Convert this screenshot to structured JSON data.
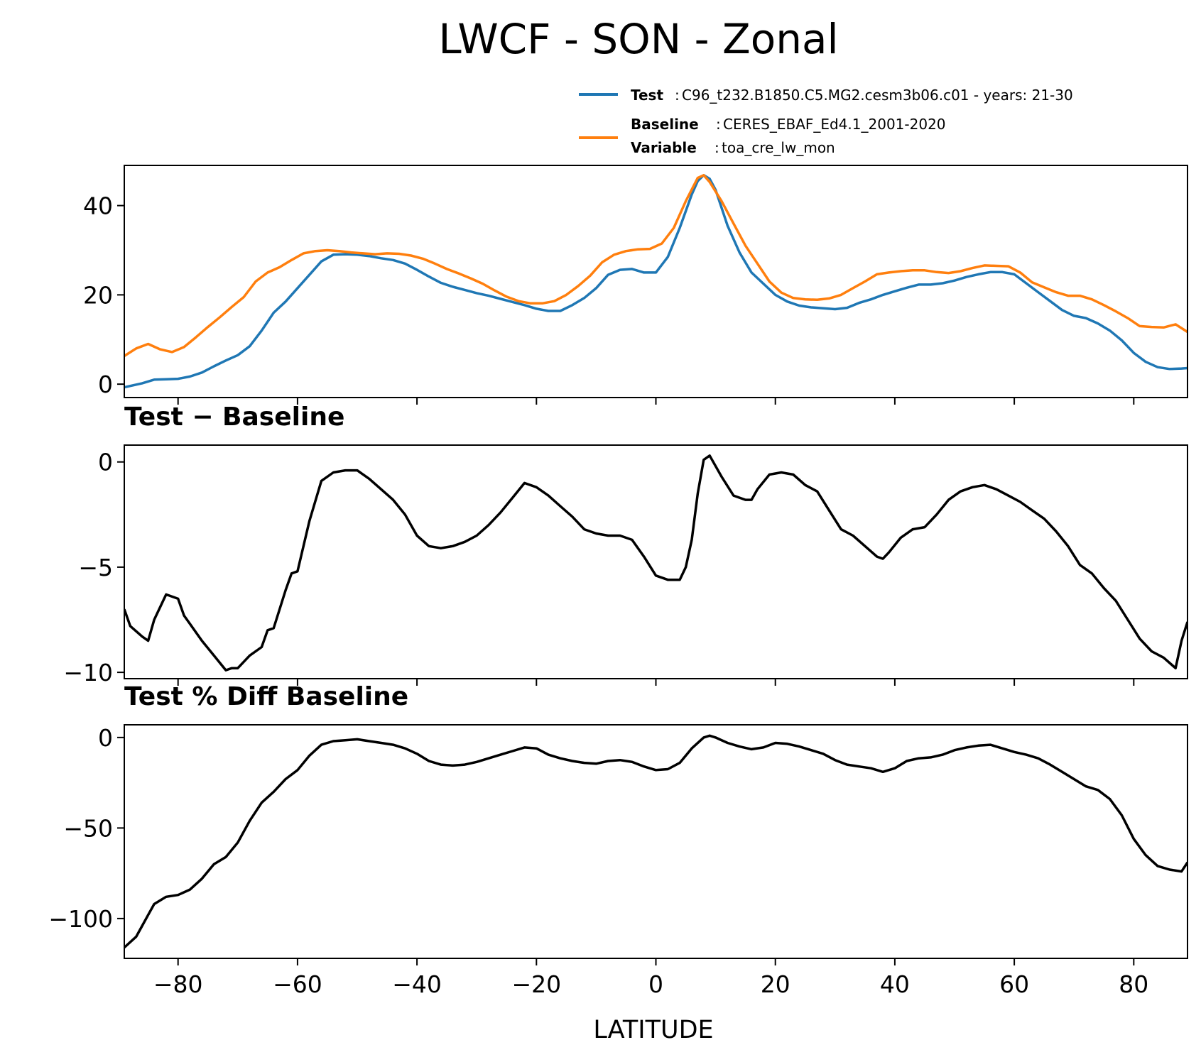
{
  "figure": {
    "title": "LWCF - SON - Zonal",
    "xlabel": "LATITUDE",
    "legend": {
      "test_key": "Test",
      "test_value": "C96_t232.B1850.C5.MG2.cesm3b06.c01 - years: 21-30",
      "baseline_key": "Baseline",
      "baseline_value": "CERES_EBAF_Ed4.1_2001-2020",
      "variable_key": "Variable",
      "variable_value": "toa_cre_lw_mon"
    },
    "panel2_title": "Test − Baseline",
    "panel3_title": "Test % Diff Baseline"
  },
  "colors": {
    "test": "#1f77b4",
    "baseline": "#ff7f0e",
    "diff": "#000000"
  },
  "chart_data": [
    {
      "type": "line",
      "title": "LWCF - SON - Zonal",
      "xlabel": "",
      "ylabel": "",
      "xlim": [
        -89,
        89
      ],
      "ylim": [
        -3,
        49
      ],
      "xticks": [
        -80,
        -60,
        -40,
        -20,
        0,
        20,
        40,
        60,
        80
      ],
      "yticks": [
        0,
        20,
        40
      ],
      "series": [
        {
          "name": "Test",
          "color": "#1f77b4",
          "x": [
            -89,
            -86,
            -84,
            -82,
            -80,
            -78,
            -76,
            -74,
            -72,
            -70,
            -68,
            -66,
            -64,
            -62,
            -60,
            -58,
            -56,
            -54,
            -52,
            -50,
            -48,
            -46,
            -44,
            -42,
            -40,
            -38,
            -36,
            -34,
            -32,
            -30,
            -28,
            -26,
            -24,
            -22,
            -20,
            -18,
            -16,
            -14,
            -12,
            -10,
            -8,
            -6,
            -4,
            -2,
            0,
            2,
            4,
            6,
            7,
            8,
            9,
            10,
            12,
            14,
            16,
            18,
            20,
            22,
            24,
            26,
            28,
            30,
            32,
            34,
            36,
            38,
            40,
            42,
            44,
            46,
            48,
            50,
            52,
            54,
            56,
            58,
            60,
            62,
            64,
            66,
            68,
            70,
            72,
            74,
            76,
            78,
            80,
            82,
            84,
            86,
            88,
            89
          ],
          "values": [
            -0.7,
            0.2,
            1.0,
            1.1,
            1.2,
            1.7,
            2.6,
            4.0,
            5.3,
            6.5,
            8.5,
            12.0,
            16.0,
            18.5,
            21.5,
            24.5,
            27.5,
            29.0,
            29.1,
            29.0,
            28.7,
            28.2,
            27.8,
            27.0,
            25.6,
            24.1,
            22.7,
            21.8,
            21.1,
            20.4,
            19.8,
            19.1,
            18.4,
            17.7,
            16.9,
            16.4,
            16.4,
            17.7,
            19.3,
            21.5,
            24.5,
            25.6,
            25.8,
            25.0,
            25.0,
            28.5,
            35.0,
            42.5,
            45.5,
            46.8,
            46.0,
            43.5,
            35.5,
            29.5,
            25.0,
            22.5,
            20.0,
            18.5,
            17.6,
            17.2,
            17.0,
            16.8,
            17.1,
            18.2,
            19.0,
            20.0,
            20.8,
            21.6,
            22.3,
            22.3,
            22.6,
            23.2,
            24.0,
            24.6,
            25.1,
            25.1,
            24.6,
            22.6,
            20.6,
            18.6,
            16.6,
            15.3,
            14.8,
            13.6,
            12.0,
            9.8,
            7.0,
            5.0,
            3.8,
            3.4,
            3.5,
            3.6
          ]
        },
        {
          "name": "Baseline",
          "color": "#ff7f0e",
          "x": [
            -89,
            -87,
            -85,
            -83,
            -81,
            -79,
            -77,
            -75,
            -73,
            -71,
            -69,
            -67,
            -65,
            -63,
            -61,
            -59,
            -57,
            -55,
            -53,
            -51,
            -49,
            -47,
            -45,
            -43,
            -41,
            -39,
            -37,
            -35,
            -33,
            -31,
            -29,
            -27,
            -25,
            -23,
            -21,
            -19,
            -17,
            -15,
            -13,
            -11,
            -9,
            -7,
            -5,
            -3,
            -1,
            1,
            3,
            5,
            7,
            8,
            9,
            11,
            13,
            15,
            17,
            19,
            21,
            23,
            25,
            27,
            29,
            31,
            33,
            35,
            37,
            39,
            41,
            43,
            45,
            47,
            49,
            51,
            53,
            55,
            57,
            59,
            61,
            63,
            65,
            67,
            69,
            71,
            73,
            75,
            77,
            79,
            81,
            83,
            85,
            87,
            89
          ],
          "values": [
            6.3,
            8.0,
            9.0,
            7.8,
            7.2,
            8.3,
            10.5,
            12.8,
            15.0,
            17.3,
            19.5,
            23.0,
            25.0,
            26.2,
            27.8,
            29.3,
            29.8,
            30.0,
            29.8,
            29.5,
            29.3,
            29.1,
            29.3,
            29.2,
            28.8,
            28.1,
            27.0,
            25.8,
            24.8,
            23.7,
            22.5,
            21.0,
            19.6,
            18.6,
            18.1,
            18.1,
            18.6,
            20.0,
            22.0,
            24.3,
            27.3,
            29.0,
            29.8,
            30.2,
            30.3,
            31.5,
            35.0,
            41.0,
            46.2,
            46.8,
            45.3,
            41.0,
            36.0,
            31.0,
            27.0,
            23.0,
            20.5,
            19.3,
            19.0,
            18.9,
            19.2,
            20.0,
            21.5,
            23.0,
            24.6,
            25.0,
            25.3,
            25.5,
            25.5,
            25.1,
            24.9,
            25.3,
            26.0,
            26.6,
            26.5,
            26.4,
            25.0,
            22.8,
            21.7,
            20.6,
            19.8,
            19.8,
            19.0,
            17.7,
            16.3,
            14.8,
            13.0,
            12.8,
            12.7,
            13.4,
            11.7
          ]
        }
      ]
    },
    {
      "type": "line",
      "title": "Test − Baseline",
      "xlabel": "",
      "ylabel": "",
      "xlim": [
        -89,
        89
      ],
      "ylim": [
        -10.3,
        0.8
      ],
      "xticks": [
        -80,
        -60,
        -40,
        -20,
        0,
        20,
        40,
        60,
        80
      ],
      "yticks": [
        -10,
        -5,
        0
      ],
      "series": [
        {
          "name": "Test − Baseline",
          "color": "#000000",
          "x": [
            -89,
            -88,
            -86,
            -85,
            -84,
            -82,
            -80,
            -79,
            -78,
            -76,
            -74,
            -72,
            -71,
            -70,
            -68,
            -66,
            -65,
            -64,
            -62,
            -61,
            -60,
            -58,
            -56,
            -54,
            -52,
            -50,
            -48,
            -46,
            -44,
            -42,
            -40,
            -38,
            -36,
            -34,
            -32,
            -30,
            -28,
            -26,
            -24,
            -22,
            -20,
            -18,
            -16,
            -14,
            -12,
            -10,
            -8,
            -6,
            -4,
            -2,
            0,
            2,
            4,
            5,
            6,
            7,
            8,
            9,
            11,
            13,
            15,
            16,
            17,
            19,
            21,
            23,
            25,
            27,
            29,
            31,
            33,
            35,
            37,
            38,
            39,
            41,
            43,
            45,
            47,
            49,
            51,
            53,
            55,
            57,
            59,
            61,
            63,
            65,
            67,
            69,
            71,
            73,
            75,
            77,
            79,
            81,
            83,
            85,
            87,
            88,
            89
          ],
          "values": [
            -7.0,
            -7.8,
            -8.3,
            -8.5,
            -7.5,
            -6.3,
            -6.5,
            -7.3,
            -7.7,
            -8.5,
            -9.2,
            -9.9,
            -9.8,
            -9.8,
            -9.2,
            -8.8,
            -8.0,
            -7.9,
            -6.1,
            -5.3,
            -5.2,
            -2.8,
            -0.9,
            -0.5,
            -0.4,
            -0.4,
            -0.8,
            -1.3,
            -1.8,
            -2.5,
            -3.5,
            -4.0,
            -4.1,
            -4.0,
            -3.8,
            -3.5,
            -3.0,
            -2.4,
            -1.7,
            -1.0,
            -1.2,
            -1.6,
            -2.1,
            -2.6,
            -3.2,
            -3.4,
            -3.5,
            -3.5,
            -3.7,
            -4.5,
            -5.4,
            -5.6,
            -5.6,
            -5.0,
            -3.7,
            -1.5,
            0.1,
            0.3,
            -0.7,
            -1.6,
            -1.8,
            -1.8,
            -1.3,
            -0.6,
            -0.5,
            -0.6,
            -1.1,
            -1.4,
            -2.3,
            -3.2,
            -3.5,
            -4.0,
            -4.5,
            -4.6,
            -4.3,
            -3.6,
            -3.2,
            -3.1,
            -2.5,
            -1.8,
            -1.4,
            -1.2,
            -1.1,
            -1.3,
            -1.6,
            -1.9,
            -2.3,
            -2.7,
            -3.3,
            -4.0,
            -4.9,
            -5.3,
            -6.0,
            -6.6,
            -7.5,
            -8.4,
            -9.0,
            -9.3,
            -9.8,
            -8.5,
            -7.6
          ]
        }
      ]
    },
    {
      "type": "line",
      "title": "Test % Diff Baseline",
      "xlabel": "LATITUDE",
      "ylabel": "",
      "xlim": [
        -89,
        89
      ],
      "ylim": [
        -122,
        7
      ],
      "xticks": [
        -80,
        -60,
        -40,
        -20,
        0,
        20,
        40,
        60,
        80
      ],
      "xtick_labels": [
        "−80",
        "−60",
        "−40",
        "−20",
        "0",
        "20",
        "40",
        "60",
        "80"
      ],
      "yticks": [
        -100,
        -50,
        0
      ],
      "series": [
        {
          "name": "Test % Diff Baseline",
          "color": "#000000",
          "x": [
            -89,
            -87,
            -86,
            -85,
            -84,
            -82,
            -80,
            -78,
            -76,
            -74,
            -72,
            -70,
            -68,
            -66,
            -64,
            -62,
            -60,
            -58,
            -56,
            -54,
            -52,
            -50,
            -48,
            -46,
            -44,
            -42,
            -40,
            -38,
            -36,
            -34,
            -32,
            -30,
            -28,
            -26,
            -24,
            -22,
            -20,
            -18,
            -16,
            -14,
            -12,
            -10,
            -8,
            -6,
            -4,
            -2,
            0,
            2,
            4,
            6,
            8,
            9,
            10,
            12,
            14,
            16,
            18,
            20,
            22,
            24,
            26,
            28,
            30,
            32,
            34,
            36,
            38,
            40,
            42,
            44,
            46,
            48,
            50,
            52,
            54,
            56,
            58,
            60,
            62,
            64,
            66,
            68,
            70,
            72,
            74,
            76,
            78,
            80,
            82,
            84,
            86,
            88,
            89
          ],
          "values": [
            -116,
            -110,
            -104,
            -98,
            -92,
            -88,
            -87,
            -84,
            -78,
            -70,
            -66,
            -58,
            -46,
            -36,
            -30,
            -23,
            -18,
            -10,
            -4,
            -2,
            -1.5,
            -1,
            -2,
            -3,
            -4,
            -6,
            -9,
            -13,
            -15,
            -15.5,
            -15,
            -13.5,
            -11.5,
            -9.5,
            -7.5,
            -5.5,
            -6,
            -9.5,
            -11.5,
            -13,
            -14,
            -14.5,
            -13,
            -12.5,
            -13.5,
            -16,
            -18,
            -17.5,
            -14,
            -6,
            0,
            1,
            0,
            -3,
            -5,
            -6.5,
            -5.5,
            -3,
            -3.5,
            -5,
            -7,
            -9,
            -12.5,
            -15,
            -16,
            -17,
            -19,
            -17,
            -13,
            -11.5,
            -11,
            -9.5,
            -7,
            -5.5,
            -4.5,
            -4,
            -6,
            -8,
            -9.5,
            -11.5,
            -15,
            -19,
            -23,
            -27,
            -29,
            -34,
            -43,
            -56,
            -65,
            -71,
            -73,
            -74,
            -69
          ]
        }
      ]
    }
  ]
}
